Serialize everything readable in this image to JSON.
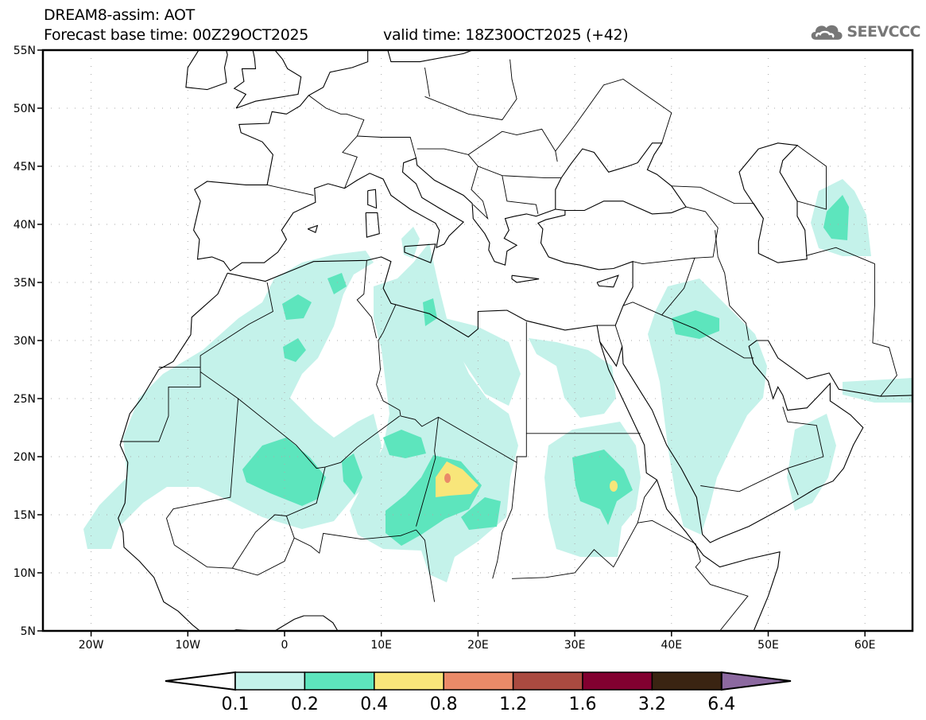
{
  "header": {
    "title": "DREAM8-assim: AOT",
    "base_time": "Forecast base time: 00Z29OCT2025",
    "valid_time": "valid time: 18Z30OCT2025 (+42)"
  },
  "logo": {
    "text": "SEEVCCC",
    "icon": "cloud-icon"
  },
  "map": {
    "lon_range": [
      -25,
      65
    ],
    "lat_range": [
      5,
      55
    ],
    "lon_ticks": [
      {
        "v": -20,
        "label": "20W"
      },
      {
        "v": -10,
        "label": "10W"
      },
      {
        "v": 0,
        "label": "0"
      },
      {
        "v": 10,
        "label": "10E"
      },
      {
        "v": 20,
        "label": "20E"
      },
      {
        "v": 30,
        "label": "30E"
      },
      {
        "v": 40,
        "label": "40E"
      },
      {
        "v": 50,
        "label": "50E"
      },
      {
        "v": 60,
        "label": "60E"
      }
    ],
    "lat_ticks": [
      {
        "v": 5,
        "label": "5N"
      },
      {
        "v": 10,
        "label": "10N"
      },
      {
        "v": 15,
        "label": "15N"
      },
      {
        "v": 20,
        "label": "20N"
      },
      {
        "v": 25,
        "label": "25N"
      },
      {
        "v": 30,
        "label": "30N"
      },
      {
        "v": 35,
        "label": "35N"
      },
      {
        "v": 40,
        "label": "40N"
      },
      {
        "v": 45,
        "label": "45N"
      },
      {
        "v": 50,
        "label": "50N"
      },
      {
        "v": 55,
        "label": "55N"
      }
    ]
  },
  "colorbar": {
    "levels": [
      "0.1",
      "0.2",
      "0.4",
      "0.8",
      "1.2",
      "1.6",
      "3.2",
      "6.4"
    ],
    "colors": [
      "#ffffff",
      "#c4f2ea",
      "#5de5bd",
      "#f8e67a",
      "#ea8a68",
      "#aa4a40",
      "#820030",
      "#3a2412",
      "#8c69a0"
    ]
  }
}
